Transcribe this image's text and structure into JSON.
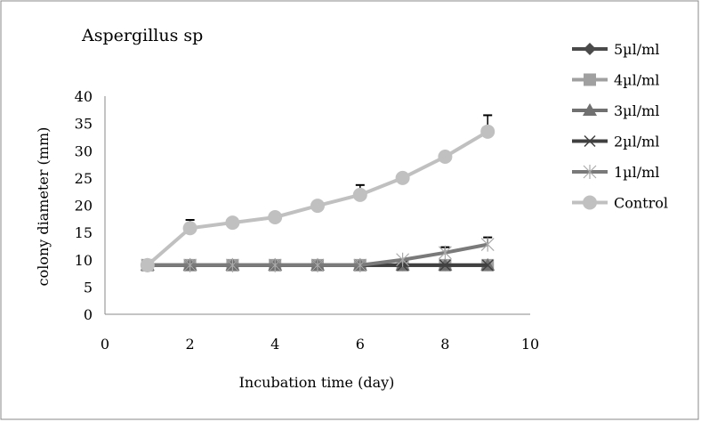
{
  "chart_data": {
    "type": "line",
    "title": "Aspergillus sp",
    "xlabel": "Incubation time (day)",
    "ylabel": "colony diameter (mm)",
    "xlim": [
      0,
      10
    ],
    "ylim": [
      0,
      40
    ],
    "xticks": [
      0,
      2,
      4,
      6,
      8,
      10
    ],
    "yticks": [
      0,
      5,
      10,
      15,
      20,
      25,
      30,
      35,
      40
    ],
    "grid": false,
    "legend_position": "right",
    "x": [
      1,
      2,
      3,
      4,
      5,
      6,
      7,
      8,
      9
    ],
    "series": [
      {
        "name": "5µl/ml",
        "marker": "diamond",
        "color": "#4a4a4a",
        "values": [
          9,
          9,
          9,
          9,
          9,
          9,
          9,
          9,
          9
        ]
      },
      {
        "name": "4µl/ml",
        "marker": "square",
        "color": "#a0a0a0",
        "values": [
          9,
          9,
          9,
          9,
          9,
          9,
          9,
          9,
          9
        ]
      },
      {
        "name": "3µl/ml",
        "marker": "triangle",
        "color": "#707070",
        "values": [
          9,
          9,
          9,
          9,
          9,
          9,
          9,
          9,
          9
        ]
      },
      {
        "name": "2µl/ml",
        "marker": "x",
        "color": "#404040",
        "values": [
          9,
          9,
          9,
          9,
          9,
          9,
          9,
          9,
          9
        ]
      },
      {
        "name": "1µl/ml",
        "marker": "star",
        "color": "#7a7a7a",
        "values": [
          9,
          9,
          9,
          9,
          9,
          9,
          10,
          11.3,
          12.8
        ],
        "errors": [
          0,
          0,
          0,
          0,
          0,
          0,
          0,
          1,
          1.3
        ]
      },
      {
        "name": "Control",
        "marker": "circle",
        "color": "#c0c0c0",
        "values": [
          9,
          15.8,
          16.8,
          17.8,
          19.9,
          21.9,
          25,
          28.9,
          33.5
        ],
        "errors": [
          0,
          1.5,
          0.5,
          0,
          0,
          1.8,
          0.6,
          0,
          3
        ]
      }
    ]
  }
}
